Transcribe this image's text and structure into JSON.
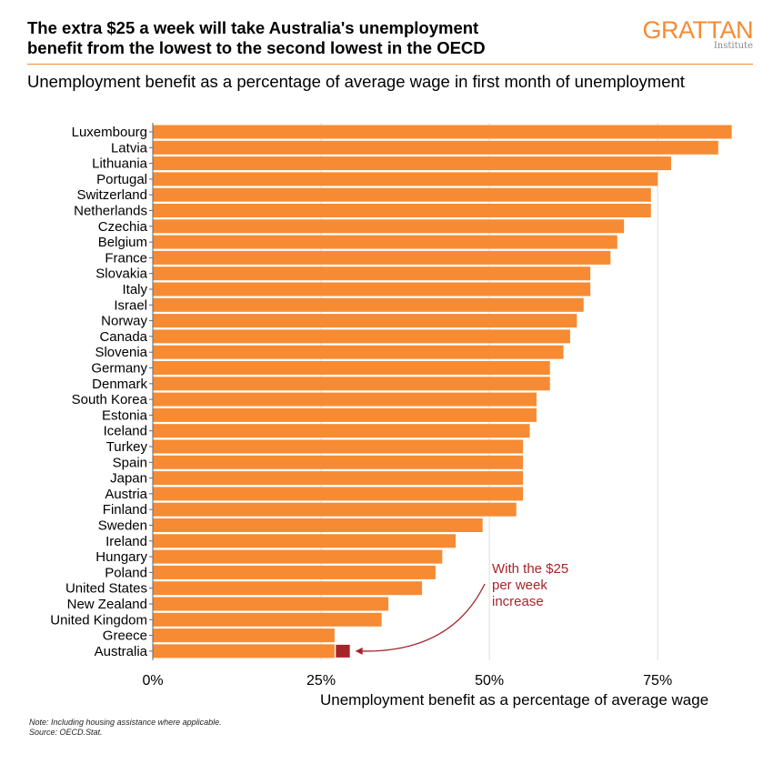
{
  "header": {
    "title_line1": "The extra $25 a week will take Australia's unemployment",
    "title_line2": "benefit from the lowest to the second lowest in the OECD",
    "subtitle": "Unemployment benefit as a percentage of average wage in first month of unemployment",
    "logo_word": "GRATTAN",
    "logo_sub": "Institute"
  },
  "colors": {
    "bar": "#F68B33",
    "highlight": "#A6252B",
    "annotation": "#A6252B",
    "grid": "#DDDDDD",
    "brand": "#F68B33"
  },
  "chart_data": {
    "type": "bar",
    "orientation": "horizontal",
    "title": "Unemployment benefit as a percentage of average wage in first month of unemployment",
    "xlabel": "Unemployment benefit as a percentage of average wage",
    "ylabel": "",
    "xlim": [
      0,
      87
    ],
    "x_ticks": [
      0,
      25,
      50,
      75
    ],
    "x_tick_labels": [
      "0%",
      "25%",
      "50%",
      "75%"
    ],
    "grid": "vertical",
    "categories": [
      "Luxembourg",
      "Latvia",
      "Lithuania",
      "Portugal",
      "Switzerland",
      "Netherlands",
      "Czechia",
      "Belgium",
      "France",
      "Slovakia",
      "Italy",
      "Israel",
      "Norway",
      "Canada",
      "Slovenia",
      "Germany",
      "Denmark",
      "South Korea",
      "Estonia",
      "Iceland",
      "Turkey",
      "Spain",
      "Japan",
      "Austria",
      "Finland",
      "Sweden",
      "Ireland",
      "Hungary",
      "Poland",
      "United States",
      "New Zealand",
      "United Kingdom",
      "Greece",
      "Australia"
    ],
    "values": [
      86,
      84,
      77,
      75,
      74,
      74,
      70,
      69,
      68,
      65,
      65,
      64,
      63,
      62,
      61,
      59,
      59,
      57,
      57,
      56,
      55,
      55,
      55,
      55,
      54,
      49,
      45,
      43,
      42,
      40,
      35,
      34,
      27,
      27
    ],
    "highlight": {
      "category": "Australia",
      "value": 29,
      "label": "With the $25 per week increase",
      "label_lines": [
        "With the $25",
        "per week",
        "increase"
      ]
    }
  },
  "footer": {
    "note": "Note: Including housing assistance where applicable.",
    "source": "Source: OECD.Stat."
  }
}
